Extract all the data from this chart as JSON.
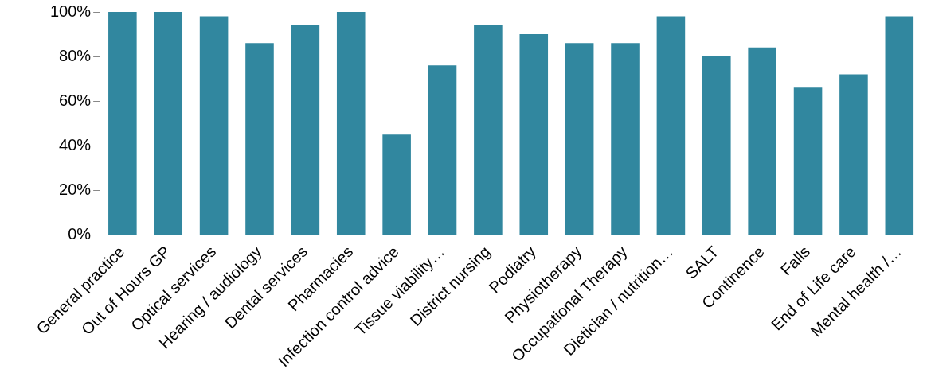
{
  "chart_data": {
    "type": "bar",
    "categories": [
      "General practice",
      "Out of Hours GP",
      "Optical services",
      "Hearing / audiology",
      "Dental services",
      "Pharmacies",
      "Infection control advice",
      "Tissue viability…",
      "District nursing",
      "Podiatry",
      "Physiotherapy",
      "Occupational Therapy",
      "Dietician / nutrition…",
      "SALT",
      "Continence",
      "Falls",
      "End of Life care",
      "Mental health /…"
    ],
    "values": [
      100,
      100,
      98,
      86,
      94,
      100,
      45,
      76,
      94,
      90,
      86,
      86,
      98,
      80,
      84,
      66,
      72,
      98
    ],
    "color": "#31879f",
    "ylim": [
      0,
      100
    ],
    "yticks": [
      {
        "value": 0,
        "label": "0%"
      },
      {
        "value": 20,
        "label": "20%"
      },
      {
        "value": 40,
        "label": "40%"
      },
      {
        "value": 60,
        "label": "60%"
      },
      {
        "value": 80,
        "label": "80%"
      },
      {
        "value": 100,
        "label": "100%"
      }
    ],
    "grid": false,
    "legend": false
  }
}
